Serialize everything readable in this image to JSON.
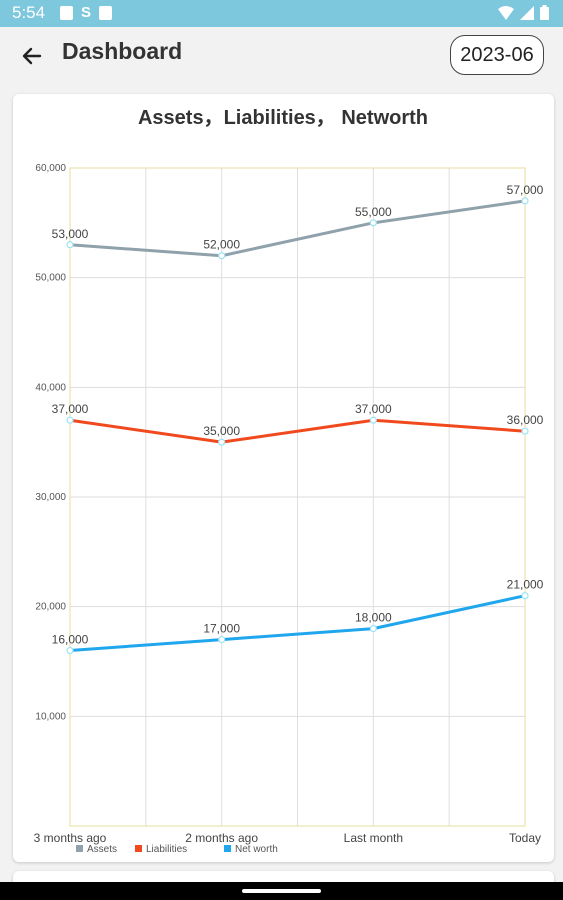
{
  "status_bar": {
    "time": "5:54",
    "left_icons": [
      "notification-icon",
      "s-app-icon",
      "storage-icon"
    ],
    "right_icons": [
      "wifi-icon",
      "signal-icon",
      "battery-icon"
    ],
    "s_glyph": "S"
  },
  "app_bar": {
    "title": "Dashboard",
    "month": "2023-06",
    "back_icon": "back-arrow-icon"
  },
  "chart_data": {
    "type": "line",
    "title": "Assets，Liabilities， Networth",
    "categories": [
      "3 months ago",
      "2 months ago",
      "Last month",
      "Today"
    ],
    "ylim": [
      0,
      60000
    ],
    "yticks": [
      10000,
      20000,
      30000,
      40000,
      50000,
      60000
    ],
    "ytick_labels": [
      "10,000",
      "20,000",
      "30,000",
      "40,000",
      "50,000",
      "60,000"
    ],
    "grid": true,
    "legend": "bottom-left",
    "series": [
      {
        "name": "Assets",
        "color": "#8fa1ab",
        "values": [
          53000,
          52000,
          55000,
          57000
        ],
        "labels": [
          "53,000",
          "52,000",
          "55,000",
          "57,000"
        ]
      },
      {
        "name": "Liabilities",
        "color": "#f0491e",
        "values": [
          37000,
          35000,
          37000,
          36000
        ],
        "labels": [
          "37,000",
          "35,000",
          "37,000",
          "36,000"
        ]
      },
      {
        "name": "Net worth",
        "color": "#20a6ec",
        "values": [
          16000,
          17000,
          18000,
          21000
        ],
        "labels": [
          "16,000",
          "17,000",
          "18,000",
          "21,000"
        ]
      }
    ]
  }
}
